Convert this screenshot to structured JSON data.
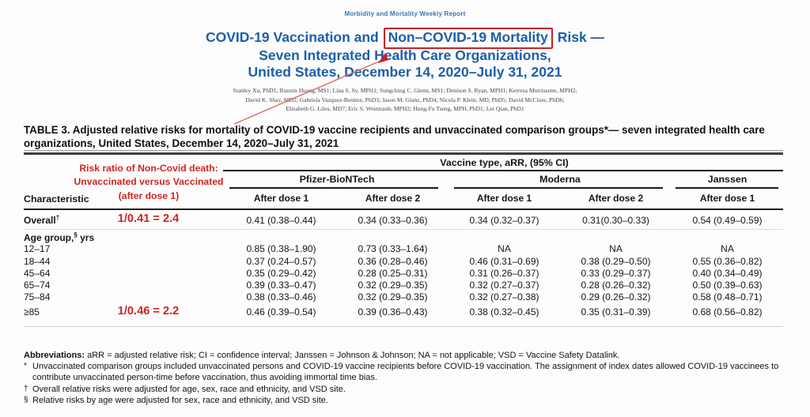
{
  "colors": {
    "accent_blue": "#1b5faa",
    "annotation_red": "#d02423"
  },
  "header": {
    "journal": "Morbidity and Mortality Weekly Report",
    "title_line1_pre": "COVID-19 Vaccination and ",
    "title_line1_boxed": "Non–COVID-19 Mortality",
    "title_line1_post": " Risk —",
    "title_line2": "Seven Integrated Health Care Organizations,",
    "title_line3": "United States, December 14, 2020–July 31, 2021",
    "authors": [
      "Stanley Xu, PhD1; Runxin Huang, MS1; Lina S. Sy, MPH1; Sungching C. Glenn, MS1; Denison S. Ryan, MPH1; Kerresa Morrissette, MPH2;",
      "David K. Shay, MD2; Gabriela Vazquez-Benitez, PhD3; Jason M. Glanz, PhD4; Nicola P. Klein, MD, PhD5; David McClure, PhD6;",
      "Elizabeth G. Liles, MD7; Eric S. Weintraub, MPH2; Hung-Fu Tseng, MPH, PhD1; Lei Qian, PhD1"
    ]
  },
  "annotations": {
    "risk_note_line1": "Risk ratio of Non-Covid death:",
    "risk_note_line2": "Unvaccinated versus Vaccinated",
    "risk_note_line3": "(after dose 1)"
  },
  "table": {
    "title": "TABLE 3. Adjusted relative risks for mortality of COVID-19 vaccine recipients and unvaccinated comparison groups*— seven integrated health care organizations, United States, December 14, 2020–July 31, 2021",
    "span_header": "Vaccine type, aRR, (95% CI)",
    "characteristic_header": "Characteristic",
    "groups": [
      {
        "label": "Pfizer-BioNTech",
        "columns": [
          "After dose 1",
          "After dose 2"
        ]
      },
      {
        "label": "Moderna",
        "columns": [
          "After dose 1",
          "After dose 2"
        ]
      },
      {
        "label": "Janssen",
        "columns": [
          "After dose 1"
        ]
      }
    ],
    "rows": [
      {
        "label": "Overall",
        "label_sup": "†",
        "ratio": "1/0.41 = 2.4",
        "values": [
          "0.41 (0.38–0.44)",
          "0.34 (0.33–0.36)",
          "0.34 (0.32–0.37)",
          "0.31(0.30–0.33)",
          "0.54 (0.49–0.59)"
        ]
      },
      {
        "label": "Age group,",
        "label_sup": "§",
        "label_after": " yrs",
        "section": true,
        "values": []
      },
      {
        "label": "12–17",
        "values": [
          "0.85 (0.38–1.90)",
          "0.73 (0.33–1.64)",
          "NA",
          "NA",
          "NA"
        ]
      },
      {
        "label": "18–44",
        "values": [
          "0.37 (0.24–0.57)",
          "0.36 (0.28–0.46)",
          "0.46 (0.31–0.69)",
          "0.38 (0.29–0.50)",
          "0.55 (0.36–0.82)"
        ]
      },
      {
        "label": "45–64",
        "values": [
          "0.35 (0.29–0.42)",
          "0.28 (0.25–0.31)",
          "0.31 (0.26–0.37)",
          "0.33 (0.29–0.37)",
          "0.40 (0.34–0.49)"
        ]
      },
      {
        "label": "65–74",
        "values": [
          "0.39 (0.33–0.47)",
          "0.32 (0.29–0.35)",
          "0.32 (0.27–0.37)",
          "0.28 (0.26–0.32)",
          "0.50 (0.39–0.63)"
        ]
      },
      {
        "label": "75–84",
        "values": [
          "0.38 (0.33–0.46)",
          "0.32 (0.29–0.35)",
          "0.32 (0.27–0.38)",
          "0.29 (0.26–0.32)",
          "0.58 (0.48–0.71)"
        ]
      },
      {
        "label": "≥85",
        "ratio": "1/0.46 = 2.2",
        "values": [
          "0.46 (0.39–0.54)",
          "0.39 (0.36–0.43)",
          "0.38 (0.32–0.45)",
          "0.35 (0.31–0.39)",
          "0.68 (0.56–0.82)"
        ]
      }
    ]
  },
  "footnotes": {
    "abbreviations_label": "Abbreviations:",
    "abbreviations_text": " aRR = adjusted relative risk; CI = confidence interval; Janssen = Johnson & Johnson; NA = not applicable; VSD = Vaccine Safety Datalink.",
    "notes": [
      {
        "marker": "*",
        "text": "Unvaccinated comparison groups included unvaccinated persons and COVID-19 vaccine recipients before COVID-19 vaccination. The assignment of index dates allowed COVID-19 vaccinees to contribute unvaccinated person-time before vaccination, thus avoiding immortal time bias."
      },
      {
        "marker": "†",
        "text": "Overall relative risks were adjusted for age, sex, race and ethnicity, and VSD site."
      },
      {
        "marker": "§",
        "text": "Relative risks by age were adjusted for sex, race and ethnicity, and VSD site."
      }
    ]
  }
}
